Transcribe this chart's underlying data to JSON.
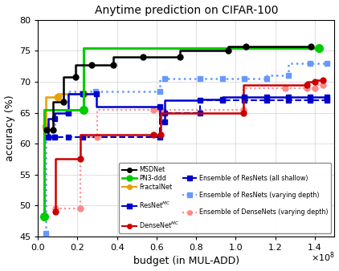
{
  "title": "Anytime prediction on CIFAR-100",
  "xlabel": "budget (in MUL-ADD)",
  "ylabel": "accuracy (%)",
  "xlim": [
    0,
    150000000.0
  ],
  "ylim": [
    45,
    80
  ],
  "xticks": [
    0.0,
    20000000.0,
    40000000.0,
    60000000.0,
    80000000.0,
    100000000.0,
    120000000.0,
    140000000.0
  ],
  "yticks": [
    45,
    50,
    55,
    60,
    65,
    70,
    75,
    80
  ],
  "scale_factor": 100000000.0,
  "MSDNet": {
    "x": [
      0.045,
      0.075,
      0.13,
      0.19,
      0.27,
      0.38,
      0.53,
      0.72,
      0.96,
      1.05,
      1.38
    ],
    "y": [
      62.2,
      62.2,
      66.8,
      70.8,
      72.7,
      72.7,
      74.0,
      74.0,
      75.1,
      75.7,
      75.7
    ],
    "color": "#000000",
    "marker": "o",
    "linestyle": "-",
    "linewidth": 1.8,
    "markersize": 5,
    "label": "MSDNet"
  },
  "FractalNet": {
    "x": [
      0.04,
      0.1,
      0.23
    ],
    "y": [
      62.8,
      67.5,
      68.0
    ],
    "color": "#E8A000",
    "marker": "o",
    "linestyle": "-",
    "linewidth": 1.8,
    "markersize": 6,
    "label": "FractalNet"
  },
  "ResNetMC": {
    "x": [
      0.05,
      0.085,
      0.155,
      0.225,
      0.295,
      0.615,
      0.64,
      0.82,
      0.935,
      1.045,
      1.155,
      1.265,
      1.375,
      1.46
    ],
    "y": [
      61.1,
      64.0,
      65.0,
      68.0,
      68.0,
      66.0,
      63.5,
      67.0,
      67.2,
      67.5,
      67.5,
      67.5,
      67.5,
      67.5
    ],
    "color": "#0000CC",
    "marker": "s",
    "linestyle": "-",
    "linewidth": 1.8,
    "markersize": 5,
    "label": "ResNet$^{MC}$"
  },
  "DenseNetMC": {
    "x": [
      0.09,
      0.215,
      0.585,
      0.62,
      1.04,
      1.36,
      1.4,
      1.44
    ],
    "y": [
      49.0,
      57.5,
      61.5,
      61.5,
      65.0,
      69.5,
      70.0,
      70.2
    ],
    "color": "#CC0000",
    "marker": "o",
    "linestyle": "-",
    "linewidth": 1.8,
    "markersize": 5,
    "label": "DenseNet$^{MC}$"
  },
  "PN3ddd": {
    "x": [
      0.03,
      0.23,
      1.42
    ],
    "y": [
      48.2,
      65.5,
      75.5
    ],
    "color": "#00CC00",
    "marker": "o",
    "linestyle": "-",
    "linewidth": 2.2,
    "markersize": 7,
    "label": "PN3-ddd"
  },
  "EnsResNetShallow": {
    "x": [
      0.05,
      0.085,
      0.155,
      0.225,
      0.615,
      0.64,
      0.82,
      0.935,
      1.045,
      1.155,
      1.265,
      1.375,
      1.46
    ],
    "y": [
      61.1,
      61.1,
      61.1,
      61.1,
      61.1,
      65.0,
      65.0,
      67.0,
      67.0,
      67.0,
      67.0,
      67.0,
      67.0
    ],
    "color": "#0000CC",
    "marker": "s",
    "linestyle": "--",
    "linewidth": 1.5,
    "markersize": 5,
    "label": "Ensemble of ResNets (all shallow)"
  },
  "EnsResNetVarying": {
    "x": [
      0.04,
      0.085,
      0.155,
      0.29,
      0.615,
      0.64,
      0.82,
      0.935,
      1.045,
      1.155,
      1.265,
      1.375,
      1.46
    ],
    "y": [
      45.5,
      61.1,
      65.0,
      68.5,
      68.5,
      70.5,
      70.5,
      70.5,
      70.5,
      70.5,
      71.0,
      73.0,
      73.0
    ],
    "color": "#6699FF",
    "marker": "s",
    "linestyle": ":",
    "linewidth": 1.8,
    "markersize": 5,
    "label": "Ensemble of ResNets (varying depth)"
  },
  "EnsDenseNetVarying": {
    "x": [
      0.09,
      0.215,
      0.3,
      0.585,
      0.62,
      1.04,
      1.25,
      1.36,
      1.4,
      1.44
    ],
    "y": [
      49.5,
      49.5,
      61.0,
      65.5,
      65.5,
      65.5,
      69.0,
      69.0,
      69.0,
      69.5
    ],
    "color": "#FF8888",
    "marker": "o",
    "linestyle": ":",
    "linewidth": 1.5,
    "markersize": 5,
    "label": "Ensemble of DenseNets (varying depth)"
  }
}
